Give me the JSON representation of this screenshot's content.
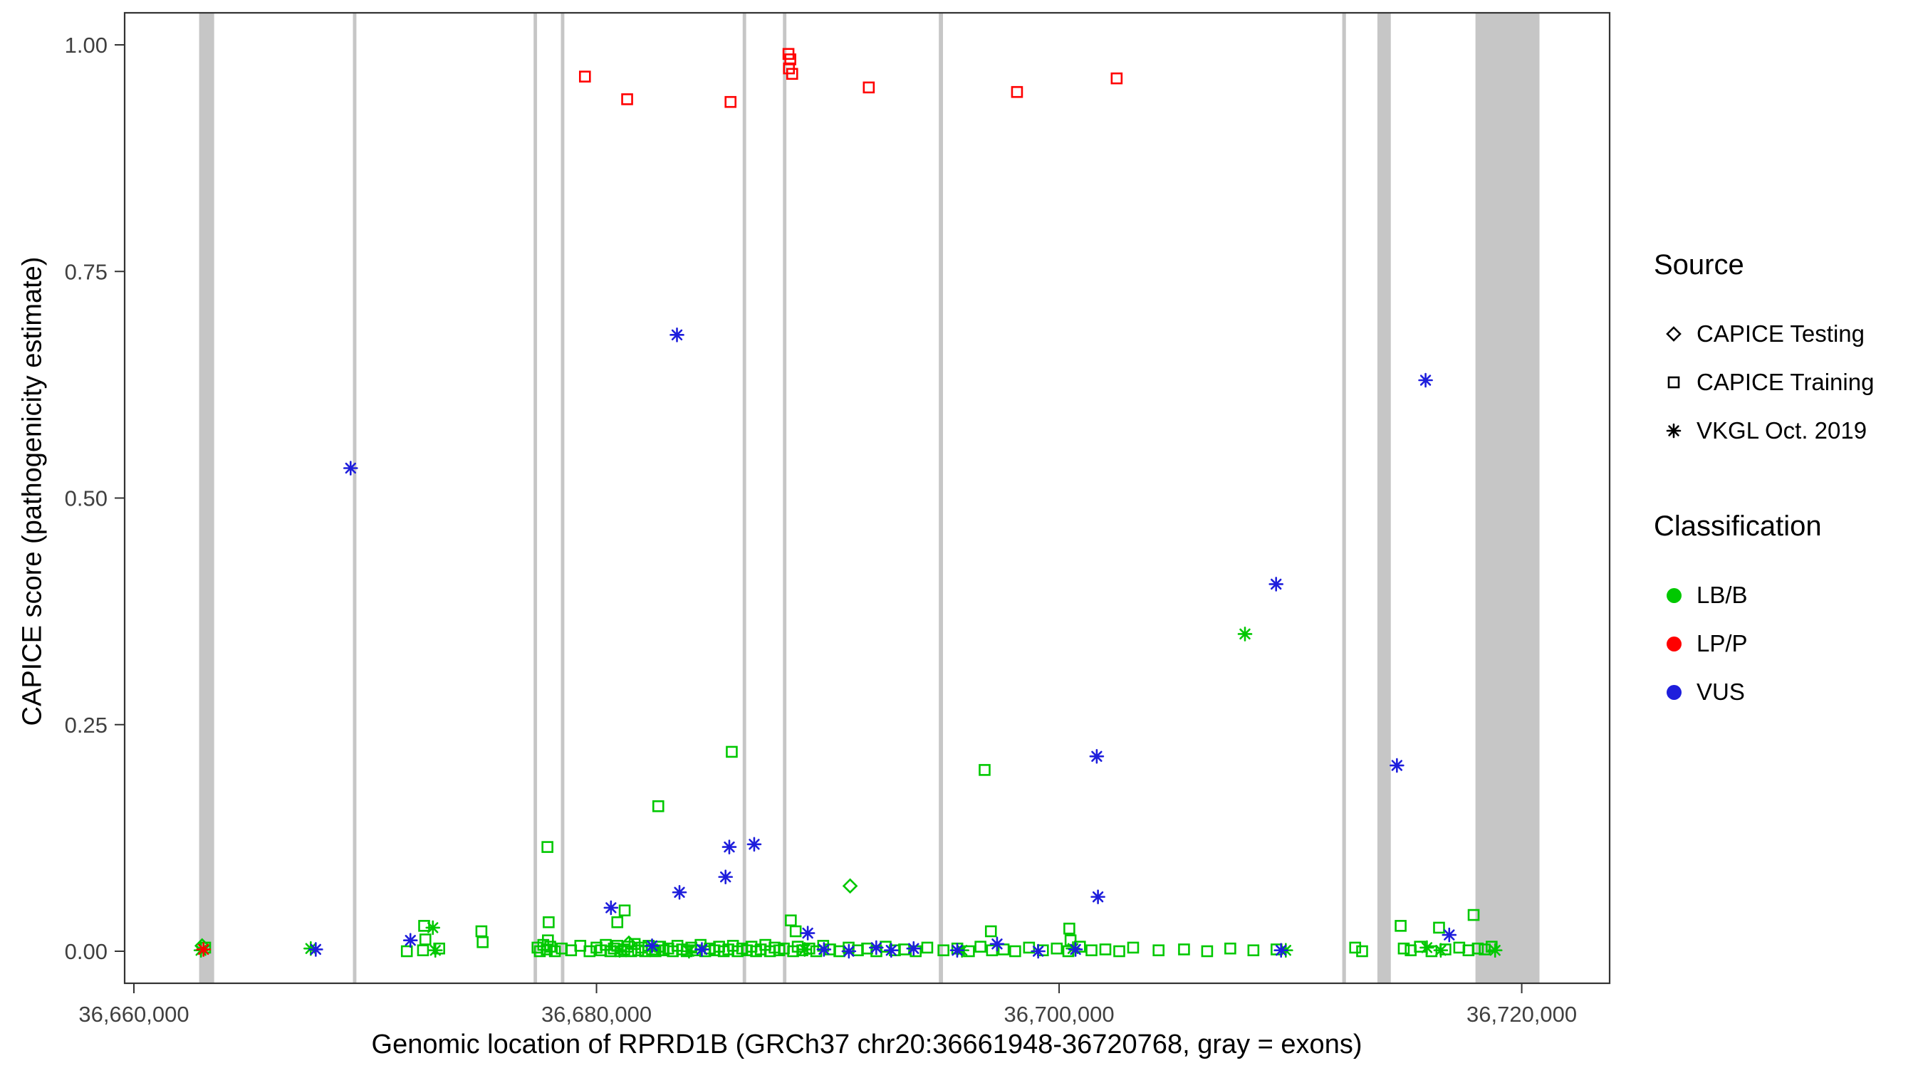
{
  "legend": {
    "source_title": "Source",
    "classification_title": "Classification",
    "position": "right"
  },
  "chart_data": {
    "type": "scatter",
    "xlabel": "Genomic location of RPRD1B (GRCh37 chr20:36661948-36720768, gray = exons)",
    "ylabel": "CAPICE score (pathogenicity estimate)",
    "xlim": [
      36659600,
      36723800
    ],
    "ylim": [
      0,
      1
    ],
    "grid": false,
    "x_ticks": [
      {
        "value": 36660000,
        "label": "36,660,000"
      },
      {
        "value": 36680000,
        "label": "36,680,000"
      },
      {
        "value": 36700000,
        "label": "36,700,000"
      },
      {
        "value": 36720000,
        "label": "36,720,000"
      }
    ],
    "y_ticks": [
      {
        "value": 0,
        "label": "0.00"
      },
      {
        "value": 0.25,
        "label": "0.25"
      },
      {
        "value": 0.5,
        "label": "0.50"
      },
      {
        "value": 0.75,
        "label": "0.75"
      },
      {
        "value": 1,
        "label": "1.00"
      }
    ],
    "exon_color": "#C6C6C6",
    "exons": [
      [
        36662820,
        36663470
      ],
      [
        36669470,
        36669620
      ],
      [
        36677280,
        36677430
      ],
      [
        36678460,
        36678610
      ],
      [
        36686320,
        36686470
      ],
      [
        36688060,
        36688210
      ],
      [
        36694800,
        36694980
      ],
      [
        36712240,
        36712400
      ],
      [
        36713760,
        36714340
      ],
      [
        36718000,
        36720768
      ]
    ],
    "shape_by_source": {
      "te": "diamond",
      "tr": "square",
      "vk": "asterisk"
    },
    "source_labels": {
      "te": "CAPICE Testing",
      "tr": "CAPICE Training",
      "vk": "VKGL Oct. 2019"
    },
    "color_by_class": {
      "LB": "#00C800",
      "LP": "#FF0000",
      "VUS": "#1E1EDC"
    },
    "class_labels": {
      "LB": "LB/B",
      "LP": "LP/P",
      "VUS": "VUS"
    },
    "points": [
      [
        36677879,
        0.115,
        "tr",
        "LB"
      ],
      [
        36682671,
        0.16,
        "tr",
        "LB"
      ],
      [
        36685848,
        0.22,
        "tr",
        "LB"
      ],
      [
        36696780,
        0.2,
        "tr",
        "LB"
      ],
      [
        36681217,
        0.045,
        "tr",
        "LB"
      ],
      [
        36680900,
        0.032,
        "tr",
        "LB"
      ],
      [
        36677932,
        0.032,
        "tr",
        "LB"
      ],
      [
        36677900,
        0.012,
        "tr",
        "LB"
      ],
      [
        36672548,
        0.028,
        "tr",
        "LB"
      ],
      [
        36672602,
        0.013,
        "tr",
        "LB"
      ],
      [
        36675024,
        0.022,
        "tr",
        "LB"
      ],
      [
        36675078,
        0.01,
        "tr",
        "LB"
      ],
      [
        36688400,
        0.034,
        "tr",
        "LB"
      ],
      [
        36688610,
        0.022,
        "tr",
        "LB"
      ],
      [
        36697050,
        0.022,
        "tr",
        "LB"
      ],
      [
        36700441,
        0.025,
        "tr",
        "LB"
      ],
      [
        36700495,
        0.012,
        "tr",
        "LB"
      ],
      [
        36717920,
        0.04,
        "tr",
        "LB"
      ],
      [
        36716425,
        0.026,
        "tr",
        "LB"
      ],
      [
        36714766,
        0.028,
        "tr",
        "LB"
      ],
      [
        36663080,
        0.004,
        "tr",
        "LB"
      ],
      [
        36708035,
        0.35,
        "vk",
        "LB"
      ],
      [
        36667647,
        0.003,
        "vk",
        "LB"
      ],
      [
        36672925,
        0.026,
        "vk",
        "LB"
      ],
      [
        36673033,
        0.001,
        "vk",
        "LB"
      ],
      [
        36662900,
        0.001,
        "vk",
        "LB"
      ],
      [
        36681000,
        0.001,
        "vk",
        "LB"
      ],
      [
        36684000,
        0,
        "vk",
        "LB"
      ],
      [
        36689000,
        0.002,
        "vk",
        "LB"
      ],
      [
        36695800,
        0.001,
        "vk",
        "LB"
      ],
      [
        36700600,
        0.003,
        "vk",
        "LB"
      ],
      [
        36709800,
        0.001,
        "vk",
        "LB"
      ],
      [
        36715900,
        0.004,
        "vk",
        "LB"
      ],
      [
        36716500,
        0.001,
        "vk",
        "LB"
      ],
      [
        36718850,
        0.001,
        "vk",
        "LB"
      ],
      [
        36690964,
        0.072,
        "te",
        "LB"
      ],
      [
        36662950,
        0.006,
        "te",
        "LB"
      ],
      [
        36681400,
        0.009,
        "te",
        "LB"
      ],
      [
        36669370,
        0.533,
        "vk",
        "VUS"
      ],
      [
        36683479,
        0.68,
        "vk",
        "VUS"
      ],
      [
        36715843,
        0.63,
        "vk",
        "VUS"
      ],
      [
        36709381,
        0.405,
        "vk",
        "VUS"
      ],
      [
        36701627,
        0.215,
        "vk",
        "VUS"
      ],
      [
        36714604,
        0.205,
        "vk",
        "VUS"
      ],
      [
        36701680,
        0.06,
        "vk",
        "VUS"
      ],
      [
        36685741,
        0.115,
        "vk",
        "VUS"
      ],
      [
        36686818,
        0.118,
        "vk",
        "VUS"
      ],
      [
        36685579,
        0.082,
        "vk",
        "VUS"
      ],
      [
        36683587,
        0.065,
        "vk",
        "VUS"
      ],
      [
        36680625,
        0.048,
        "vk",
        "VUS"
      ],
      [
        36671955,
        0.012,
        "vk",
        "VUS"
      ],
      [
        36667863,
        0.002,
        "vk",
        "VUS"
      ],
      [
        36682402,
        0.006,
        "vk",
        "VUS"
      ],
      [
        36684556,
        0.002,
        "vk",
        "VUS"
      ],
      [
        36689133,
        0.02,
        "vk",
        "VUS"
      ],
      [
        36689833,
        0.002,
        "vk",
        "VUS"
      ],
      [
        36690911,
        0,
        "vk",
        "VUS"
      ],
      [
        36692095,
        0.004,
        "vk",
        "VUS"
      ],
      [
        36692741,
        0.001,
        "vk",
        "VUS"
      ],
      [
        36693710,
        0.003,
        "vk",
        "VUS"
      ],
      [
        36695595,
        0.001,
        "vk",
        "VUS"
      ],
      [
        36697318,
        0.008,
        "vk",
        "VUS"
      ],
      [
        36699095,
        0,
        "vk",
        "VUS"
      ],
      [
        36700710,
        0.002,
        "vk",
        "VUS"
      ],
      [
        36709596,
        0.001,
        "vk",
        "VUS"
      ],
      [
        36716866,
        0.018,
        "vk",
        "VUS"
      ],
      [
        36679500,
        0.965,
        "tr",
        "LP"
      ],
      [
        36681325,
        0.94,
        "tr",
        "LP"
      ],
      [
        36685795,
        0.937,
        "tr",
        "LP"
      ],
      [
        36688300,
        0.99,
        "tr",
        "LP"
      ],
      [
        36688380,
        0.984,
        "tr",
        "LP"
      ],
      [
        36688320,
        0.974,
        "tr",
        "LP"
      ],
      [
        36688460,
        0.968,
        "tr",
        "LP"
      ],
      [
        36691772,
        0.953,
        "tr",
        "LP"
      ],
      [
        36698180,
        0.948,
        "tr",
        "LP"
      ],
      [
        36702488,
        0.963,
        "tr",
        "LP"
      ],
      [
        36663010,
        0.002,
        "vk",
        "LP"
      ]
    ],
    "baseline_points": {
      "source": "tr",
      "class": "LB",
      "note": "dense row of benign CAPICE Training variants with scores near 0",
      "data": [
        [
          36677450,
          0.004
        ],
        [
          36677550,
          0
        ],
        [
          36677700,
          0.007
        ],
        [
          36677850,
          0.002
        ],
        [
          36678000,
          0.005
        ],
        [
          36678200,
          0
        ],
        [
          36678500,
          0.003
        ],
        [
          36678900,
          0.001
        ],
        [
          36679300,
          0.006
        ],
        [
          36679700,
          0
        ],
        [
          36680000,
          0.004
        ],
        [
          36680200,
          0.001
        ],
        [
          36680400,
          0.007
        ],
        [
          36680600,
          0
        ],
        [
          36680750,
          0.003
        ],
        [
          36680900,
          0.006
        ],
        [
          36681050,
          0
        ],
        [
          36681200,
          0.002
        ],
        [
          36681350,
          0.005
        ],
        [
          36681500,
          0
        ],
        [
          36681650,
          0.008
        ],
        [
          36681800,
          0.001
        ],
        [
          36681950,
          0.004
        ],
        [
          36682100,
          0
        ],
        [
          36682250,
          0.006
        ],
        [
          36682400,
          0.002
        ],
        [
          36682550,
          0
        ],
        [
          36682750,
          0.005
        ],
        [
          36682900,
          0.001
        ],
        [
          36683100,
          0.003
        ],
        [
          36683300,
          0
        ],
        [
          36683500,
          0.006
        ],
        [
          36683700,
          0.002
        ],
        [
          36683900,
          0
        ],
        [
          36684100,
          0.004
        ],
        [
          36684300,
          0.001
        ],
        [
          36684500,
          0.007
        ],
        [
          36684700,
          0
        ],
        [
          36684900,
          0.003
        ],
        [
          36685100,
          0.001
        ],
        [
          36685300,
          0.005
        ],
        [
          36685500,
          0
        ],
        [
          36685700,
          0.002
        ],
        [
          36685900,
          0.006
        ],
        [
          36686100,
          0
        ],
        [
          36686300,
          0.003
        ],
        [
          36686500,
          0.001
        ],
        [
          36686700,
          0.005
        ],
        [
          36686900,
          0
        ],
        [
          36687100,
          0.002
        ],
        [
          36687300,
          0.007
        ],
        [
          36687500,
          0
        ],
        [
          36687700,
          0.004
        ],
        [
          36687900,
          0.001
        ],
        [
          36688100,
          0.003
        ],
        [
          36688500,
          0
        ],
        [
          36688700,
          0.005
        ],
        [
          36688900,
          0.001
        ],
        [
          36689200,
          0.003
        ],
        [
          36689500,
          0
        ],
        [
          36689800,
          0.006
        ],
        [
          36690100,
          0.002
        ],
        [
          36690500,
          0
        ],
        [
          36690900,
          0.004
        ],
        [
          36691300,
          0.001
        ],
        [
          36691700,
          0.003
        ],
        [
          36692100,
          0
        ],
        [
          36692500,
          0.005
        ],
        [
          36692900,
          0.001
        ],
        [
          36693300,
          0.002
        ],
        [
          36693800,
          0
        ],
        [
          36694300,
          0.004
        ],
        [
          36695000,
          0.001
        ],
        [
          36695600,
          0.003
        ],
        [
          36696100,
          0
        ],
        [
          36696600,
          0.005
        ],
        [
          36697100,
          0.001
        ],
        [
          36697600,
          0.002
        ],
        [
          36698100,
          0
        ],
        [
          36698700,
          0.004
        ],
        [
          36699300,
          0.001
        ],
        [
          36699900,
          0.003
        ],
        [
          36700400,
          0
        ],
        [
          36700900,
          0.005
        ],
        [
          36701400,
          0.001
        ],
        [
          36702000,
          0.002
        ],
        [
          36702600,
          0
        ],
        [
          36703200,
          0.004
        ],
        [
          36704300,
          0.001
        ],
        [
          36705400,
          0.002
        ],
        [
          36706400,
          0
        ],
        [
          36707400,
          0.003
        ],
        [
          36708400,
          0.001
        ],
        [
          36709400,
          0.002
        ],
        [
          36712800,
          0.004
        ],
        [
          36713100,
          0
        ],
        [
          36714900,
          0.003
        ],
        [
          36715200,
          0.001
        ],
        [
          36715600,
          0.005
        ],
        [
          36716100,
          0
        ],
        [
          36716700,
          0.002
        ],
        [
          36717300,
          0.004
        ],
        [
          36717700,
          0.001
        ],
        [
          36718100,
          0.003
        ],
        [
          36718400,
          0.002
        ],
        [
          36718700,
          0.005
        ],
        [
          36672500,
          0.001
        ],
        [
          36673200,
          0.003
        ],
        [
          36671800,
          0
        ]
      ]
    }
  }
}
